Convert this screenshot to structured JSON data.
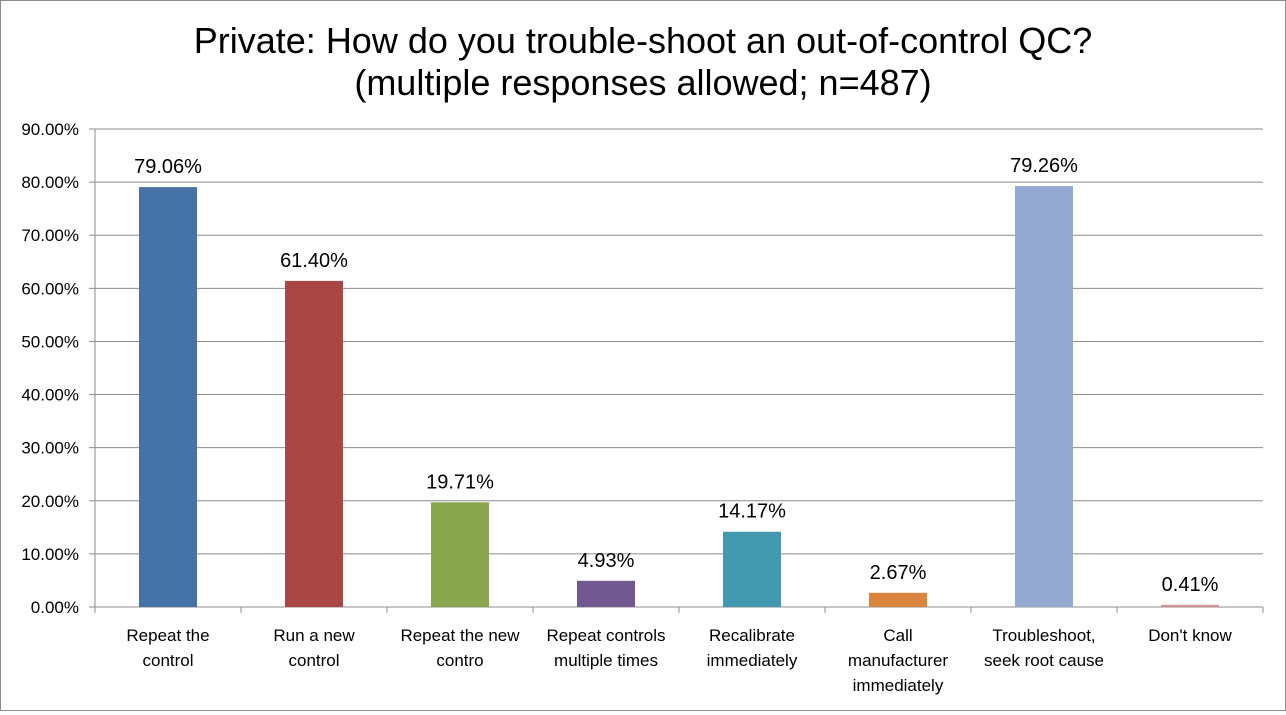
{
  "chart_data": {
    "type": "bar",
    "title": [
      "Private: How do you trouble-shoot an out-of-control QC?",
      "(multiple responses allowed; n=487)"
    ],
    "xlabel": "",
    "ylabel": "",
    "ylim": [
      0,
      90
    ],
    "ytick_step": 10,
    "ytick_labels": [
      "0.00%",
      "10.00%",
      "20.00%",
      "30.00%",
      "40.00%",
      "50.00%",
      "60.00%",
      "70.00%",
      "80.00%",
      "90.00%"
    ],
    "grid": true,
    "legend": "none",
    "categories": [
      [
        "Repeat the",
        "control"
      ],
      [
        "Run a new",
        "control"
      ],
      [
        "Repeat the new",
        "contro"
      ],
      [
        "Repeat controls",
        "multiple times"
      ],
      [
        "Recalibrate",
        "immediately"
      ],
      [
        "Call",
        "manufacturer",
        "immediately"
      ],
      [
        "Troubleshoot,",
        "seek root cause"
      ],
      [
        "Don't know"
      ]
    ],
    "values": [
      79.06,
      61.4,
      19.71,
      4.93,
      14.17,
      2.67,
      79.26,
      0.41
    ],
    "data_labels": [
      "79.06%",
      "61.40%",
      "19.71%",
      "4.93%",
      "14.17%",
      "2.67%",
      "79.26%",
      "0.41%"
    ],
    "colors": [
      "#4572A7",
      "#AA4643",
      "#89A54E",
      "#71588F",
      "#4198AF",
      "#DB843D",
      "#93A9CF",
      "#D19392"
    ]
  }
}
